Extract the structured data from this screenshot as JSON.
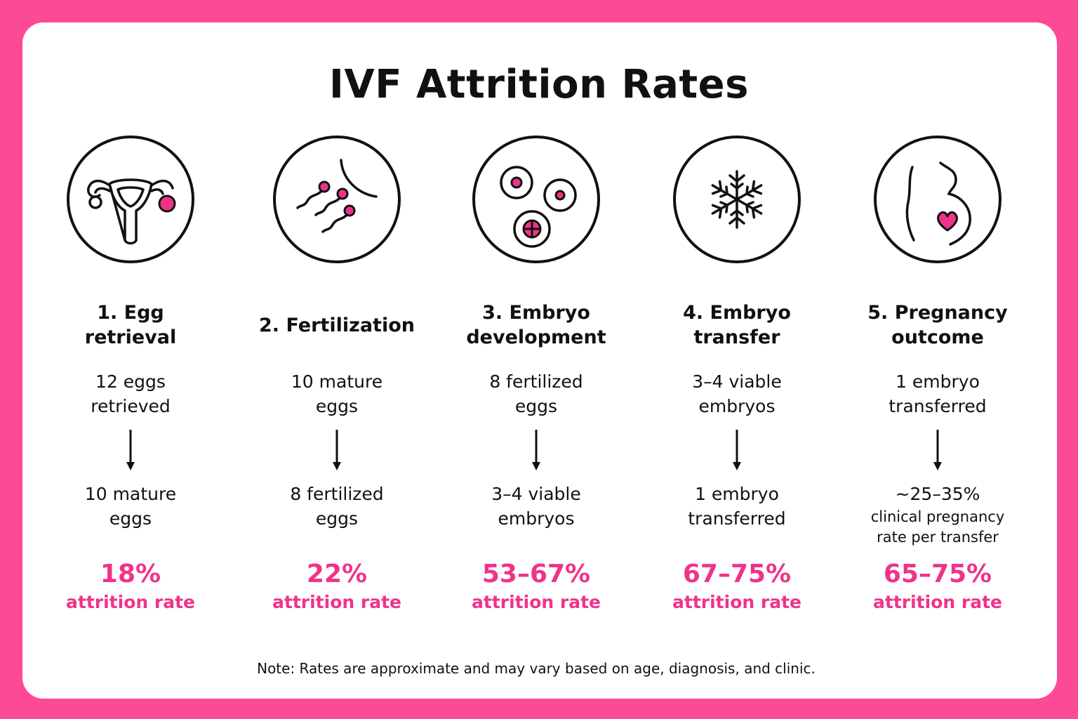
{
  "title": "IVF Attrition Rates",
  "accent_color": "#f0338a",
  "border_color": "#fc4a97",
  "steps": [
    {
      "title": "1. Egg retrieval",
      "icon": "uterus-ovaries-icon",
      "from": "12 eggs retrieved",
      "to": "10 mature eggs",
      "to_sub": "",
      "rate": "18%",
      "rate_label": "attrition rate"
    },
    {
      "title": "2. Fertilization",
      "icon": "sperm-egg-icon",
      "from": "10 mature eggs",
      "to": "8 fertilized eggs",
      "to_sub": "",
      "rate": "22%",
      "rate_label": "attrition rate"
    },
    {
      "title": "3. Embryo development",
      "icon": "embryo-cells-icon",
      "from": "8 fertilized eggs",
      "to": "3–4 viable embryos",
      "to_sub": "",
      "rate": "53–67%",
      "rate_label": "attrition rate"
    },
    {
      "title": "4. Embryo transfer",
      "icon": "snowflake-icon",
      "from": "3–4 viable embryos",
      "to": "1 embryo transferred",
      "to_sub": "",
      "rate": "67–75%",
      "rate_label": "attrition rate"
    },
    {
      "title": "5. Pregnancy outcome",
      "icon": "pregnant-belly-heart-icon",
      "from": "1 embryo transferred",
      "to": "~25–35%",
      "to_sub": "clinical pregnancy rate per transfer",
      "rate": "65–75%",
      "rate_label": "attrition rate"
    }
  ],
  "note": "Note: Rates are approximate and may vary based on age, diagnosis, and clinic."
}
